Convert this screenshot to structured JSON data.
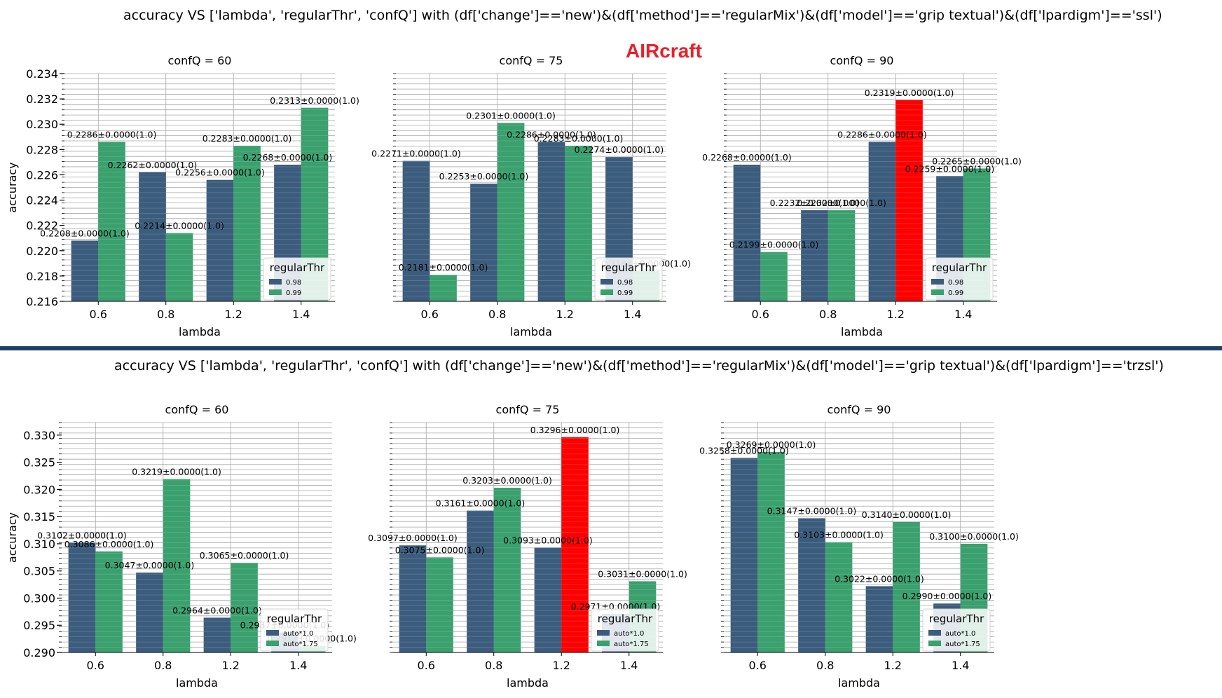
{
  "brand_label": "AIRcraft",
  "colors": {
    "series0": "#3b5c7d",
    "series1": "#3aa06e",
    "highlight": "#ff0000",
    "divider": "#1f3f66"
  },
  "chart_data": [
    {
      "type": "bar",
      "suptitle": "accuracy VS ['lambda', 'regularThr', 'confQ'] with (df['change']=='new')&(df['method']=='regularMix')&(df['model']=='grip textual')&(df['lpardigm']=='ssl')",
      "xlabel": "lambda",
      "ylabel": "accuracy",
      "ylim": [
        0.216,
        0.234
      ],
      "yticks": [
        "0.216",
        "0.218",
        "0.220",
        "0.222",
        "0.224",
        "0.226",
        "0.228",
        "0.230",
        "0.232",
        "0.234"
      ],
      "categories": [
        "0.6",
        "0.8",
        "1.2",
        "1.4"
      ],
      "legend_title": "regularThr",
      "legend_position": "lower right",
      "series_names": [
        "0.98",
        "0.99"
      ],
      "panels": [
        {
          "title": "confQ = 60",
          "series": [
            {
              "name": "0.98",
              "values": [
                0.2208,
                0.2262,
                0.2256,
                0.2268
              ],
              "labels": [
                "0.2208±0.0000(1.0)",
                "0.2262±0.0000(1.0)",
                "0.2256±0.0000(1.0)",
                "0.2268±0.0000(1.0)"
              ]
            },
            {
              "name": "0.99",
              "values": [
                0.2286,
                0.2214,
                0.2283,
                0.2313
              ],
              "labels": [
                "0.2286±0.0000(1.0)",
                "0.2214±0.0000(1.0)",
                "0.2283±0.0000(1.0)",
                "0.2313±0.0000(1.0)"
              ]
            }
          ]
        },
        {
          "title": "confQ = 75",
          "series": [
            {
              "name": "0.98",
              "values": [
                0.2271,
                0.2253,
                0.2286,
                0.2274
              ],
              "labels": [
                "0.2271±0.0000(1.0)",
                "0.2253±0.0000(1.0)",
                "0.2286±0.0000(1.0)",
                "0.2274±0.0000(1.0)"
              ]
            },
            {
              "name": "0.99",
              "values": [
                0.2181,
                0.2301,
                0.2283,
                0.2184
              ],
              "labels": [
                "0.2181±0.0000(1.0)",
                "0.2301±0.0000(1.0)",
                "0.2283±0.0000(1.0)",
                "0.2184±0.0000(1.0)"
              ]
            }
          ]
        },
        {
          "title": "confQ = 90",
          "series": [
            {
              "name": "0.98",
              "values": [
                0.2268,
                0.2232,
                0.2286,
                0.2259
              ],
              "labels": [
                "0.2268±0.0000(1.0)",
                "0.2232±0.0000(1.0)",
                "0.2286±0.0000(1.0)",
                "0.2259±0.0000(1.0)"
              ]
            },
            {
              "name": "0.99",
              "values": [
                0.2199,
                0.2232,
                0.2319,
                0.2265
              ],
              "labels": [
                "0.2199±0.0000(1.0)",
                "0.2232±0.0000(1.0)",
                "0.2319±0.0000(1.0)",
                "0.2265±0.0000(1.0)"
              ]
            }
          ],
          "highlight": {
            "series": 1,
            "index": 2
          }
        }
      ]
    },
    {
      "type": "bar",
      "suptitle": "accuracy VS ['lambda', 'regularThr', 'confQ'] with (df['change']=='new')&(df['method']=='regularMix')&(df['model']=='grip textual')&(df['lpardigm']=='trzsl')",
      "xlabel": "lambda",
      "ylabel": "accuracy",
      "ylim": [
        0.29,
        0.3323
      ],
      "yticks": [
        "0.290",
        "0.295",
        "0.300",
        "0.305",
        "0.310",
        "0.315",
        "0.320",
        "0.325",
        "0.330"
      ],
      "categories": [
        "0.6",
        "0.8",
        "1.2",
        "1.4"
      ],
      "legend_title": "regularThr",
      "legend_position": "lower right",
      "series_names": [
        "auto*1.0",
        "auto*1.75"
      ],
      "panels": [
        {
          "title": "confQ = 60",
          "series": [
            {
              "name": "auto*1.0",
              "values": [
                0.3102,
                0.3047,
                0.2964,
                0.2937
              ],
              "labels": [
                "0.3102±0.0000(1.0)",
                "0.3047±0.0000(1.0)",
                "0.2964±0.0000(1.0)",
                "0.2937±0.0000(1.0)"
              ]
            },
            {
              "name": "auto*1.75",
              "values": [
                0.3086,
                0.3219,
                0.3065,
                0.2912
              ],
              "labels": [
                "0.3086±0.0000(1.0)",
                "0.3219±0.0000(1.0)",
                "0.3065±0.0000(1.0)",
                "0.2912±0.0000(1.0)"
              ]
            }
          ]
        },
        {
          "title": "confQ = 75",
          "series": [
            {
              "name": "auto*1.0",
              "values": [
                0.3097,
                0.3161,
                0.3093,
                0.2971
              ],
              "labels": [
                "0.3097±0.0000(1.0)",
                "0.3161±0.0000(1.0)",
                "0.3093±0.0000(1.0)",
                "0.2971±0.0000(1.0)"
              ]
            },
            {
              "name": "auto*1.75",
              "values": [
                0.3075,
                0.3203,
                0.3296,
                0.3031
              ],
              "labels": [
                "0.3075±0.0000(1.0)",
                "0.3203±0.0000(1.0)",
                "0.3296±0.0000(1.0)",
                "0.3031±0.0000(1.0)"
              ]
            }
          ],
          "highlight": {
            "series": 1,
            "index": 2
          }
        },
        {
          "title": "confQ = 90",
          "series": [
            {
              "name": "auto*1.0",
              "values": [
                0.3258,
                0.3147,
                0.3022,
                0.299
              ],
              "labels": [
                "0.3258±0.0000(1.0)",
                "0.3147±0.0000(1.0)",
                "0.3022±0.0000(1.0)",
                "0.2990±0.0000(1.0)"
              ]
            },
            {
              "name": "auto*1.75",
              "values": [
                0.3269,
                0.3103,
                0.314,
                0.31
              ],
              "labels": [
                "0.3269±0.0000(1.0)",
                "0.3103±0.0000(1.0)",
                "0.3140±0.0000(1.0)",
                "0.3100±0.0000(1.0)"
              ]
            }
          ]
        }
      ]
    }
  ]
}
